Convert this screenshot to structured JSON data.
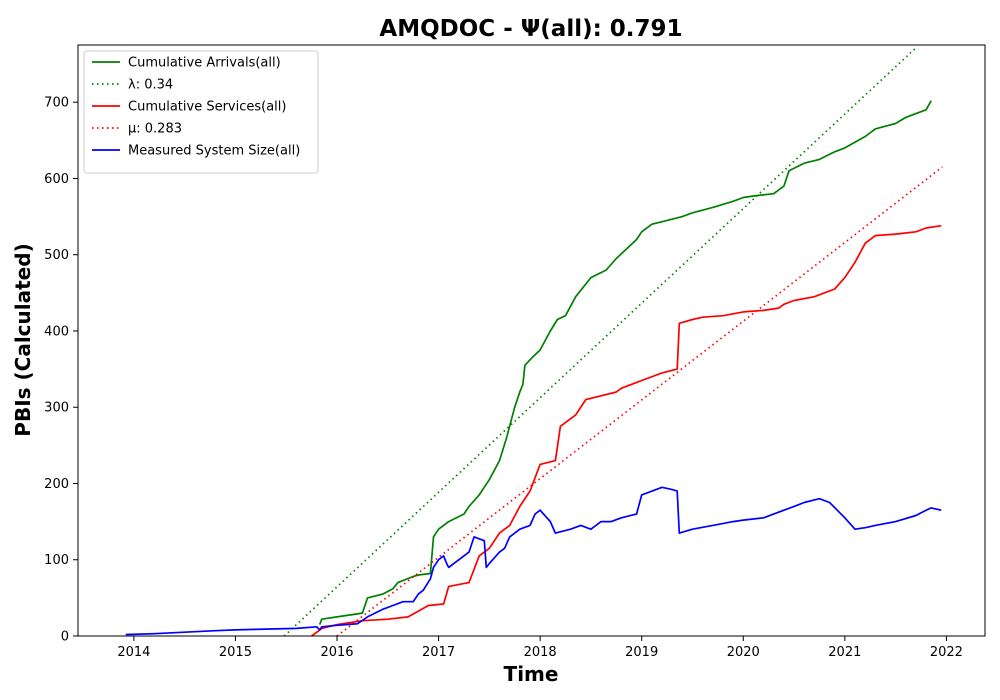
{
  "chart_data": {
    "type": "line",
    "title": "AMQDOC -  Ψ(all): 0.791",
    "xlabel": "Time",
    "ylabel": "PBIs (Calculated)",
    "xlim": [
      2013.45,
      2022.38
    ],
    "ylim": [
      0,
      775
    ],
    "x_ticks": [
      2014,
      2015,
      2016,
      2017,
      2018,
      2019,
      2020,
      2021,
      2022
    ],
    "x_tick_labels": [
      "2014",
      "2015",
      "2016",
      "2017",
      "2018",
      "2019",
      "2020",
      "2021",
      "2022"
    ],
    "y_ticks": [
      0,
      100,
      200,
      300,
      400,
      500,
      600,
      700
    ],
    "y_tick_labels": [
      "0",
      "100",
      "200",
      "300",
      "400",
      "500",
      "600",
      "700"
    ],
    "grid": false,
    "legend_position": "top-left",
    "series": [
      {
        "name": "Cumulative Arrivals(all)",
        "style": "solid",
        "color": "#008000",
        "x": [
          2015.83,
          2015.85,
          2016.0,
          2016.25,
          2016.3,
          2016.45,
          2016.55,
          2016.6,
          2016.75,
          2016.8,
          2016.92,
          2016.95,
          2017.0,
          2017.1,
          2017.25,
          2017.3,
          2017.4,
          2017.5,
          2017.6,
          2017.67,
          2017.75,
          2017.8,
          2017.83,
          2017.85,
          2017.92,
          2018.0,
          2018.1,
          2018.17,
          2018.25,
          2018.35,
          2018.5,
          2018.65,
          2018.75,
          2018.95,
          2019.0,
          2019.1,
          2019.25,
          2019.4,
          2019.5,
          2019.7,
          2019.9,
          2020.0,
          2020.1,
          2020.3,
          2020.4,
          2020.45,
          2020.6,
          2020.75,
          2020.9,
          2021.0,
          2021.2,
          2021.3,
          2021.5,
          2021.6,
          2021.7,
          2021.8,
          2021.85
        ],
        "y": [
          15,
          22,
          25,
          30,
          50,
          55,
          62,
          70,
          78,
          80,
          82,
          130,
          140,
          150,
          160,
          170,
          185,
          205,
          230,
          260,
          300,
          320,
          330,
          355,
          365,
          375,
          400,
          415,
          420,
          445,
          470,
          480,
          495,
          520,
          530,
          540,
          545,
          550,
          555,
          562,
          570,
          575,
          577,
          580,
          590,
          610,
          620,
          625,
          635,
          640,
          655,
          665,
          672,
          680,
          685,
          690,
          702
        ]
      },
      {
        "name": "λ: 0.34",
        "style": "dotted",
        "color": "#008000",
        "x": [
          2015.48,
          2021.69
        ],
        "y": [
          0,
          770
        ]
      },
      {
        "name": "Cumulative Services(all)",
        "style": "solid",
        "color": "#ff0000",
        "x": [
          2015.75,
          2015.85,
          2016.0,
          2016.25,
          2016.5,
          2016.7,
          2016.9,
          2017.05,
          2017.1,
          2017.3,
          2017.4,
          2017.5,
          2017.6,
          2017.7,
          2017.8,
          2017.9,
          2018.0,
          2018.15,
          2018.2,
          2018.35,
          2018.45,
          2018.6,
          2018.75,
          2018.8,
          2019.0,
          2019.2,
          2019.35,
          2019.37,
          2019.5,
          2019.6,
          2019.8,
          2020.0,
          2020.2,
          2020.35,
          2020.4,
          2020.5,
          2020.7,
          2020.9,
          2021.0,
          2021.1,
          2021.2,
          2021.3,
          2021.5,
          2021.7,
          2021.8,
          2021.95
        ],
        "y": [
          0,
          10,
          15,
          20,
          22,
          25,
          40,
          42,
          65,
          70,
          105,
          115,
          135,
          145,
          170,
          190,
          225,
          230,
          275,
          290,
          310,
          315,
          320,
          325,
          335,
          345,
          350,
          410,
          415,
          418,
          420,
          425,
          427,
          430,
          435,
          440,
          445,
          455,
          470,
          490,
          515,
          525,
          527,
          530,
          535,
          538
        ]
      },
      {
        "name": "μ: 0.283",
        "style": "dotted",
        "color": "#ff0000",
        "x": [
          2016.0,
          2021.96
        ],
        "y": [
          0,
          615
        ]
      },
      {
        "name": "Measured System Size(all)",
        "style": "solid",
        "color": "#0000ff",
        "x": [
          2013.92,
          2014.2,
          2014.5,
          2014.8,
          2015.0,
          2015.3,
          2015.6,
          2015.8,
          2015.83,
          2015.85,
          2016.0,
          2016.2,
          2016.3,
          2016.45,
          2016.55,
          2016.65,
          2016.75,
          2016.8,
          2016.85,
          2016.92,
          2016.95,
          2017.0,
          2017.05,
          2017.08,
          2017.1,
          2017.2,
          2017.3,
          2017.35,
          2017.45,
          2017.47,
          2017.5,
          2017.6,
          2017.65,
          2017.7,
          2017.8,
          2017.9,
          2017.95,
          2018.0,
          2018.1,
          2018.15,
          2018.3,
          2018.4,
          2018.5,
          2018.6,
          2018.7,
          2018.8,
          2018.95,
          2019.0,
          2019.2,
          2019.3,
          2019.35,
          2019.37,
          2019.5,
          2019.7,
          2019.9,
          2020.0,
          2020.2,
          2020.4,
          2020.5,
          2020.6,
          2020.75,
          2020.85,
          2021.0,
          2021.1,
          2021.2,
          2021.3,
          2021.5,
          2021.7,
          2021.8,
          2021.85,
          2021.95
        ],
        "y": [
          2,
          3,
          5,
          7,
          8,
          9,
          10,
          12,
          8,
          12,
          14,
          16,
          25,
          35,
          40,
          45,
          45,
          55,
          60,
          75,
          90,
          100,
          105,
          95,
          90,
          100,
          110,
          130,
          125,
          90,
          95,
          110,
          115,
          130,
          140,
          145,
          160,
          165,
          150,
          135,
          140,
          145,
          140,
          150,
          150,
          155,
          160,
          185,
          195,
          192,
          190,
          135,
          140,
          145,
          150,
          152,
          155,
          165,
          170,
          175,
          180,
          175,
          155,
          140,
          142,
          145,
          150,
          158,
          165,
          168,
          165
        ]
      }
    ]
  }
}
